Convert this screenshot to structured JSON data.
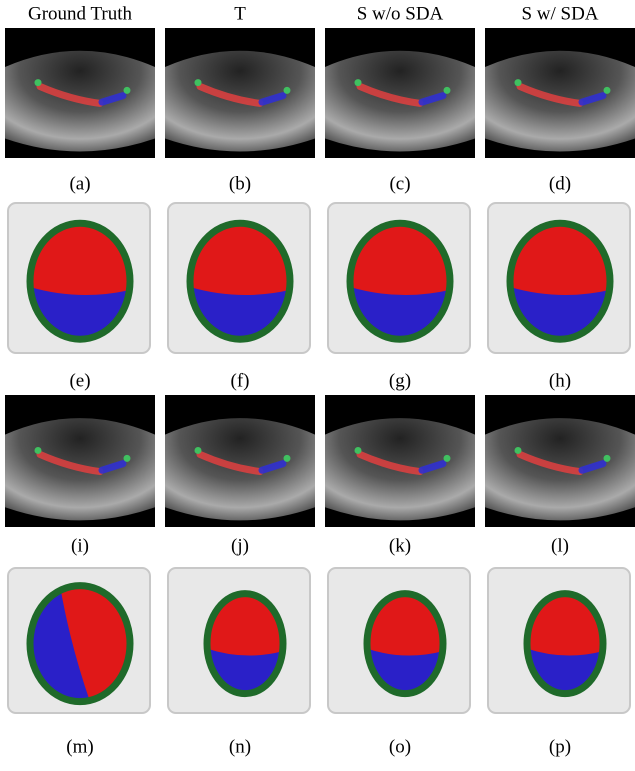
{
  "column_headers": [
    "Ground Truth",
    "T",
    "S w/o SDA",
    "S w/ SDA"
  ],
  "captions": [
    "(a)",
    "(b)",
    "(c)",
    "(d)",
    "(e)",
    "(f)",
    "(g)",
    "(h)",
    "(i)",
    "(j)",
    "(k)",
    "(l)",
    "(m)",
    "(n)",
    "(o)",
    "(p)"
  ]
}
